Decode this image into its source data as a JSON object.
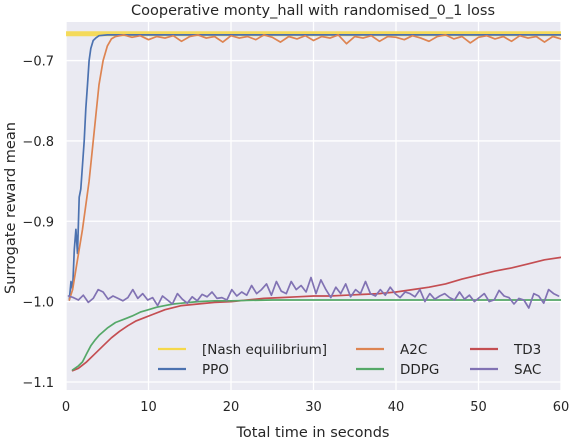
{
  "chart_data": {
    "type": "line",
    "title": "Cooperative monty_hall with randomised_0_1 loss",
    "xlabel": "Total time in seconds",
    "ylabel": "Surrogate reward mean",
    "xlim": [
      0,
      60
    ],
    "ylim": [
      -1.11,
      -0.652
    ],
    "xticks": [
      0,
      10,
      20,
      30,
      40,
      50,
      60
    ],
    "xtick_labels": [
      "0",
      "10",
      "20",
      "30",
      "40",
      "50",
      "60"
    ],
    "yticks": [
      -1.1,
      -1.0,
      -0.9,
      -0.8,
      -0.7
    ],
    "ytick_labels": [
      "−1.1",
      "−1.0",
      "−0.9",
      "−0.8",
      "−0.7"
    ],
    "grid": true,
    "legend_placement": "lower-right",
    "series": [
      {
        "name": "[Nash equilibrium]",
        "color": "#f5d84a",
        "x": [
          0,
          60
        ],
        "y": [
          -0.6667,
          -0.6667
        ]
      },
      {
        "name": "PPO",
        "color": "#4c72b0",
        "x": [
          0.4,
          0.6,
          0.8,
          1.0,
          1.2,
          1.4,
          1.6,
          1.8,
          2.0,
          2.2,
          2.4,
          2.6,
          2.8,
          3.0,
          3.3,
          3.6,
          4.0,
          5,
          7,
          10,
          15,
          20,
          30,
          40,
          50,
          60
        ],
        "y": [
          -0.998,
          -0.975,
          -0.985,
          -0.935,
          -0.91,
          -0.94,
          -0.87,
          -0.86,
          -0.83,
          -0.8,
          -0.76,
          -0.73,
          -0.7,
          -0.685,
          -0.675,
          -0.672,
          -0.669,
          -0.668,
          -0.668,
          -0.668,
          -0.668,
          -0.668,
          -0.668,
          -0.668,
          -0.668,
          -0.668
        ]
      },
      {
        "name": "A2C",
        "color": "#dd8452",
        "x": [
          0.4,
          0.8,
          1.2,
          1.6,
          2.0,
          2.4,
          2.8,
          3.2,
          3.6,
          4.0,
          4.5,
          5.0,
          5.5,
          6.0,
          7,
          8,
          9,
          10,
          11,
          12,
          13,
          14,
          15,
          16,
          17,
          18,
          19,
          20,
          21,
          22,
          23,
          24,
          25,
          26,
          27,
          28,
          29,
          30,
          31,
          32,
          33,
          34,
          35,
          36,
          37,
          38,
          39,
          40,
          41,
          42,
          43,
          44,
          45,
          46,
          47,
          48,
          49,
          50,
          51,
          52,
          53,
          54,
          55,
          56,
          57,
          58,
          59,
          60
        ],
        "y": [
          -0.998,
          -0.985,
          -0.96,
          -0.935,
          -0.91,
          -0.88,
          -0.85,
          -0.81,
          -0.77,
          -0.73,
          -0.7,
          -0.682,
          -0.673,
          -0.67,
          -0.668,
          -0.671,
          -0.669,
          -0.674,
          -0.67,
          -0.672,
          -0.669,
          -0.676,
          -0.67,
          -0.668,
          -0.672,
          -0.67,
          -0.677,
          -0.669,
          -0.672,
          -0.67,
          -0.674,
          -0.668,
          -0.671,
          -0.677,
          -0.67,
          -0.673,
          -0.669,
          -0.675,
          -0.67,
          -0.672,
          -0.668,
          -0.679,
          -0.67,
          -0.672,
          -0.669,
          -0.676,
          -0.67,
          -0.671,
          -0.674,
          -0.669,
          -0.672,
          -0.676,
          -0.67,
          -0.668,
          -0.673,
          -0.67,
          -0.678,
          -0.671,
          -0.669,
          -0.673,
          -0.67,
          -0.676,
          -0.669,
          -0.672,
          -0.67,
          -0.677,
          -0.67,
          -0.673
        ]
      },
      {
        "name": "TD3",
        "color": "#c44e52",
        "x": [
          0.8,
          1.5,
          2.5,
          3.5,
          4.5,
          5.5,
          6.5,
          7.5,
          8.5,
          9.5,
          10.5,
          12,
          14,
          16,
          18,
          20,
          22,
          24,
          26,
          28,
          30,
          32,
          34,
          36,
          38,
          40,
          42,
          44,
          46,
          48,
          50,
          52,
          54,
          56,
          58,
          60
        ],
        "y": [
          -1.086,
          -1.083,
          -1.075,
          -1.065,
          -1.055,
          -1.045,
          -1.037,
          -1.03,
          -1.024,
          -1.02,
          -1.016,
          -1.01,
          -1.005,
          -1.003,
          -1.001,
          -1.0,
          -0.998,
          -0.996,
          -0.995,
          -0.994,
          -0.993,
          -0.993,
          -0.992,
          -0.991,
          -0.99,
          -0.988,
          -0.985,
          -0.982,
          -0.978,
          -0.972,
          -0.967,
          -0.962,
          -0.958,
          -0.953,
          -0.948,
          -0.945
        ]
      },
      {
        "name": "DDPG",
        "color": "#55a868",
        "x": [
          0.8,
          1.5,
          2.0,
          2.5,
          3.0,
          3.5,
          4.0,
          5,
          6,
          7,
          8,
          9,
          10,
          11,
          12,
          13,
          14,
          15,
          16,
          18,
          20,
          25,
          30,
          40,
          50,
          60
        ],
        "y": [
          -1.085,
          -1.08,
          -1.075,
          -1.065,
          -1.055,
          -1.048,
          -1.042,
          -1.033,
          -1.026,
          -1.022,
          -1.018,
          -1.013,
          -1.01,
          -1.007,
          -1.005,
          -1.003,
          -1.002,
          -1.001,
          -1.0,
          -0.999,
          -0.999,
          -0.998,
          -0.998,
          -0.998,
          -0.998,
          -0.998
        ]
      },
      {
        "name": "SAC",
        "color": "#8172b3",
        "x": [
          0.3,
          0.9,
          1.5,
          2.1,
          2.7,
          3.3,
          3.9,
          4.5,
          5.1,
          5.7,
          6.3,
          6.9,
          7.5,
          8.1,
          8.7,
          9.3,
          9.9,
          10.5,
          11.1,
          11.7,
          12.3,
          12.9,
          13.5,
          14.1,
          14.7,
          15.3,
          15.9,
          16.5,
          17.1,
          17.7,
          18.3,
          18.9,
          19.5,
          20.1,
          20.7,
          21.3,
          21.9,
          22.5,
          23.1,
          23.7,
          24.3,
          24.9,
          25.5,
          26.1,
          26.7,
          27.3,
          27.9,
          28.5,
          29.1,
          29.7,
          30.3,
          30.9,
          31.5,
          32.1,
          32.7,
          33.3,
          33.9,
          34.5,
          35.1,
          35.7,
          36.3,
          36.9,
          37.5,
          38.1,
          38.7,
          39.3,
          39.9,
          40.5,
          41.1,
          41.7,
          42.3,
          42.9,
          43.5,
          44.1,
          44.7,
          45.3,
          45.9,
          46.5,
          47.1,
          47.7,
          48.3,
          48.9,
          49.5,
          50.1,
          50.7,
          51.3,
          51.9,
          52.5,
          53.1,
          53.7,
          54.3,
          54.9,
          55.5,
          56.1,
          56.7,
          57.3,
          57.9,
          58.5,
          59.1,
          59.7
        ],
        "y": [
          -0.993,
          -0.995,
          -0.998,
          -0.992,
          -1.001,
          -0.996,
          -0.985,
          -0.988,
          -0.997,
          -0.993,
          -0.996,
          -0.999,
          -0.995,
          -0.985,
          -0.996,
          -0.99,
          -0.998,
          -0.995,
          -1.005,
          -0.993,
          -0.998,
          -1.003,
          -0.99,
          -0.997,
          -1.002,
          -0.994,
          -0.999,
          -0.991,
          -0.994,
          -0.988,
          -0.996,
          -0.995,
          -0.998,
          -0.985,
          -0.993,
          -0.988,
          -0.992,
          -0.98,
          -0.99,
          -0.985,
          -0.978,
          -0.992,
          -0.975,
          -0.987,
          -0.99,
          -0.975,
          -0.985,
          -0.98,
          -0.988,
          -0.97,
          -0.99,
          -0.973,
          -0.985,
          -0.995,
          -0.982,
          -0.99,
          -0.978,
          -0.994,
          -0.985,
          -0.99,
          -0.975,
          -0.99,
          -0.993,
          -0.985,
          -0.992,
          -0.982,
          -0.99,
          -0.995,
          -0.988,
          -0.99,
          -0.994,
          -0.985,
          -1.0,
          -0.99,
          -0.997,
          -0.993,
          -0.99,
          -0.995,
          -0.998,
          -0.988,
          -0.997,
          -0.992,
          -1.0,
          -0.995,
          -0.99,
          -1.0,
          -0.998,
          -0.986,
          -0.993,
          -0.995,
          -1.003,
          -0.996,
          -0.998,
          -1.008,
          -0.99,
          -0.993,
          -1.002,
          -0.985,
          -0.99,
          -0.993
        ]
      }
    ]
  }
}
